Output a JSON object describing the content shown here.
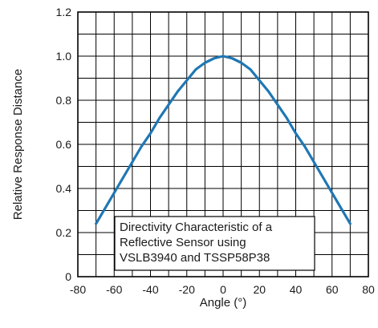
{
  "chart_data": {
    "type": "line",
    "title": "",
    "xlabel": "Angle (°)",
    "ylabel": "Relative Response Distance",
    "xlim": [
      -80,
      80
    ],
    "ylim": [
      0,
      1.2
    ],
    "x_ticks": [
      -80,
      -60,
      -40,
      -20,
      0,
      20,
      40,
      60,
      80
    ],
    "y_ticks": [
      0,
      0.2,
      0.4,
      0.6,
      0.8,
      1.0,
      1.2
    ],
    "x_tick_labels": [
      "-80",
      "-60",
      "-40",
      "-20",
      "0",
      "20",
      "40",
      "60",
      "80"
    ],
    "y_tick_labels": [
      "0",
      "0.2",
      "0.4",
      "0.6",
      "0.8",
      "1.0",
      "1.2"
    ],
    "x_grid_step": 10,
    "y_grid_step": 0.1,
    "grid": true,
    "series": [
      {
        "color": "#1f77b4",
        "x": [
          -70,
          -65,
          -60,
          -55,
          -50,
          -45,
          -40,
          -35,
          -30,
          -25,
          -20,
          -15,
          -10,
          -5,
          0,
          5,
          10,
          15,
          20,
          25,
          30,
          35,
          40,
          45,
          50,
          55,
          60,
          65,
          70
        ],
        "y": [
          0.24,
          0.31,
          0.38,
          0.45,
          0.52,
          0.59,
          0.65,
          0.72,
          0.78,
          0.84,
          0.89,
          0.94,
          0.97,
          0.99,
          1.0,
          0.99,
          0.97,
          0.94,
          0.89,
          0.84,
          0.78,
          0.72,
          0.65,
          0.59,
          0.52,
          0.45,
          0.38,
          0.31,
          0.24
        ]
      }
    ],
    "annotation": {
      "lines": [
        "Directivity Characteristic of a",
        "Reflective Sensor using",
        "VSLB3940 and TSSP58P38"
      ]
    }
  }
}
